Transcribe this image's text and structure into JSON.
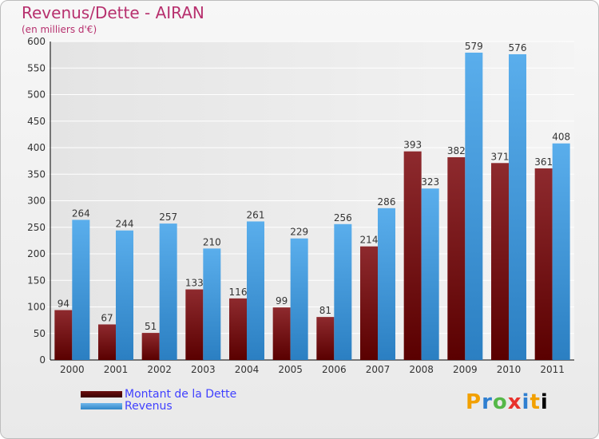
{
  "title": "Revenus/Dette - AIRAN",
  "subtitle": "(en milliers d'€)",
  "brand": "Proxiti",
  "colors": {
    "dette": "#6b1416",
    "revenus": "#4aa3e6",
    "title": "#b7306e",
    "legend_text": "#4040ff"
  },
  "chart_data": {
    "type": "bar",
    "title": "Revenus/Dette - AIRAN",
    "subtitle": "(en milliers d'€)",
    "categories": [
      "2000",
      "2001",
      "2002",
      "2003",
      "2004",
      "2005",
      "2006",
      "2007",
      "2008",
      "2009",
      "2010",
      "2011"
    ],
    "series": [
      {
        "name": "Montant de la Dette",
        "values": [
          94,
          67,
          51,
          133,
          116,
          99,
          81,
          214,
          393,
          382,
          371,
          361
        ]
      },
      {
        "name": "Revenus",
        "values": [
          264,
          244,
          257,
          210,
          261,
          229,
          256,
          286,
          323,
          579,
          576,
          408
        ]
      }
    ],
    "ylim": [
      0,
      600
    ],
    "yticks": [
      0,
      50,
      100,
      150,
      200,
      250,
      300,
      350,
      400,
      450,
      500,
      550,
      600
    ],
    "grid": true,
    "legend_position": "bottom-left"
  }
}
